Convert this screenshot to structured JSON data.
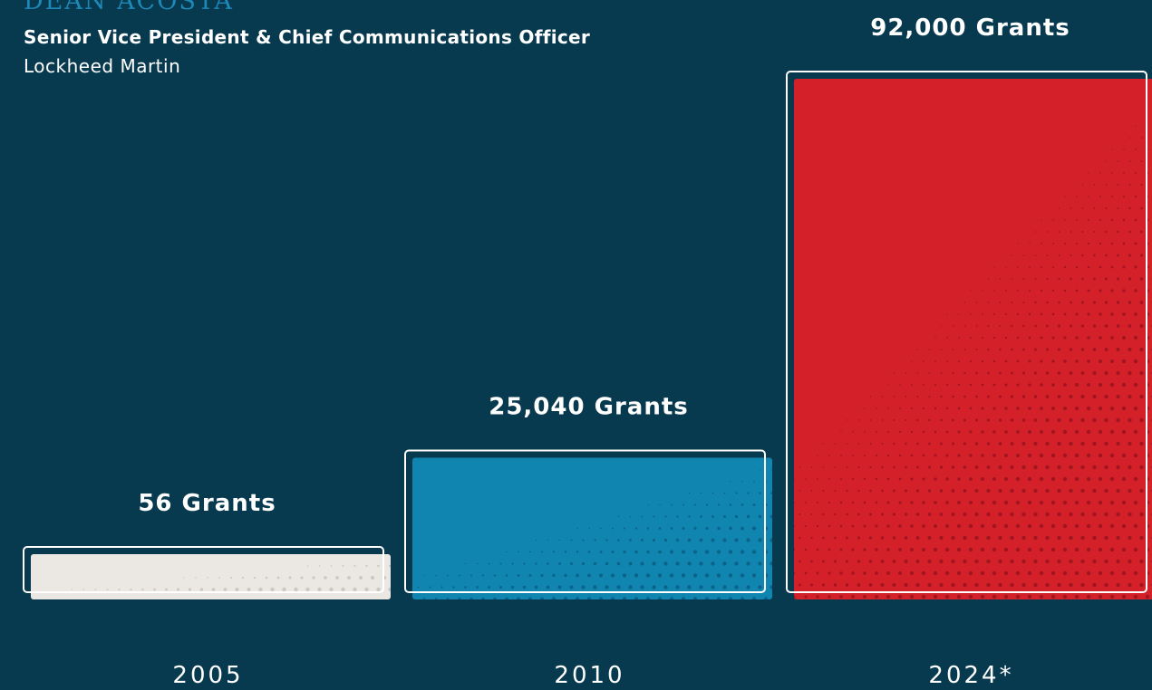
{
  "header": {
    "name": "DEAN ACOSTA",
    "role": "Senior Vice President & Chief Communications Officer",
    "organization": "Lockheed Martin"
  },
  "colors": {
    "background": "#083a4f",
    "name": "#1e88b8",
    "outline": "#ffffff"
  },
  "chart_data": {
    "type": "bar",
    "categories": [
      "2005",
      "2010",
      "2024*"
    ],
    "values": [
      56,
      25040,
      92000
    ],
    "data_labels": [
      "56 Grants",
      "25,040 Grants",
      "92,000 Grants"
    ],
    "bar_colors": [
      "#ebe8e3",
      "#0f85b0",
      "#d42028"
    ],
    "dot_colors": [
      "#c9c4be",
      "#0b5f86",
      "#9a1420"
    ],
    "ylim": [
      0,
      92000
    ],
    "title": "",
    "xlabel": "",
    "ylabel": "",
    "grid": false,
    "legend": "none"
  }
}
